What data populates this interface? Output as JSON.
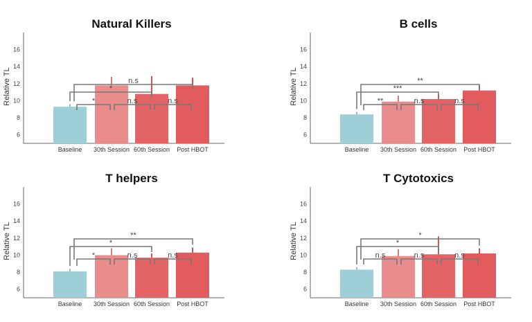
{
  "colors": {
    "baseline": "#9fcfd6",
    "session30": "#e88c8c",
    "session60": "#e46466",
    "post": "#e25c5e",
    "bracket": "#777777",
    "axis": "#666666"
  },
  "chart_data": [
    {
      "type": "bar",
      "title": "Natural Killers",
      "ylabel": "Relative TL",
      "xlabel": "",
      "ylim": [
        5,
        18
      ],
      "yticks": [
        6,
        8,
        10,
        12,
        14,
        16
      ],
      "categories": [
        "Baseline",
        "30th Session",
        "60th Session",
        "Post HBOT"
      ],
      "values": [
        9.3,
        11.8,
        10.8,
        11.8
      ],
      "errors": [
        0.3,
        1.0,
        2.1,
        0.9
      ],
      "significance": [
        {
          "from": 0,
          "to": 1,
          "label": "*"
        },
        {
          "from": 1,
          "to": 2,
          "label": "n.s"
        },
        {
          "from": 2,
          "to": 3,
          "label": "n.s"
        },
        {
          "from": 0,
          "to": 2,
          "label": "*"
        },
        {
          "from": 0,
          "to": 3,
          "label": "n.s"
        }
      ]
    },
    {
      "type": "bar",
      "title": "B cells",
      "ylabel": "Relative TL",
      "xlabel": "",
      "ylim": [
        5,
        18
      ],
      "yticks": [
        6,
        8,
        10,
        12,
        14,
        16
      ],
      "categories": [
        "Baseline",
        "30th Session",
        "60th Session",
        "Post HBOT"
      ],
      "values": [
        8.4,
        9.9,
        10.2,
        11.2
      ],
      "errors": [
        0.3,
        0.7,
        0.6,
        0.6
      ],
      "significance": [
        {
          "from": 0,
          "to": 1,
          "label": "**"
        },
        {
          "from": 1,
          "to": 2,
          "label": "n.s"
        },
        {
          "from": 2,
          "to": 3,
          "label": "n.s"
        },
        {
          "from": 0,
          "to": 2,
          "label": "***"
        },
        {
          "from": 0,
          "to": 3,
          "label": "**"
        }
      ]
    },
    {
      "type": "bar",
      "title": "T helpers",
      "ylabel": "Relative TL",
      "xlabel": "",
      "ylim": [
        5,
        18
      ],
      "yticks": [
        6,
        8,
        10,
        12,
        14,
        16
      ],
      "categories": [
        "Baseline",
        "30th Session",
        "60th Session",
        "Post HBOT"
      ],
      "values": [
        8.1,
        10.0,
        9.7,
        10.3
      ],
      "errors": [
        0.3,
        0.8,
        0.5,
        0.6
      ],
      "significance": [
        {
          "from": 0,
          "to": 1,
          "label": "*"
        },
        {
          "from": 1,
          "to": 2,
          "label": "n.s"
        },
        {
          "from": 2,
          "to": 3,
          "label": "n.s"
        },
        {
          "from": 0,
          "to": 2,
          "label": "*"
        },
        {
          "from": 0,
          "to": 3,
          "label": "**"
        }
      ]
    },
    {
      "type": "bar",
      "title": "T Cytotoxics",
      "ylabel": "Relative TL",
      "xlabel": "",
      "ylim": [
        5,
        18
      ],
      "yticks": [
        6,
        8,
        10,
        12,
        14,
        16
      ],
      "categories": [
        "Baseline",
        "30th Session",
        "60th Session",
        "Post HBOT"
      ],
      "values": [
        8.3,
        9.9,
        10.1,
        10.2
      ],
      "errors": [
        0.3,
        0.8,
        2.1,
        0.6
      ],
      "significance": [
        {
          "from": 0,
          "to": 1,
          "label": "n.s"
        },
        {
          "from": 1,
          "to": 2,
          "label": "n.s"
        },
        {
          "from": 2,
          "to": 3,
          "label": "n.s"
        },
        {
          "from": 0,
          "to": 2,
          "label": "*"
        },
        {
          "from": 0,
          "to": 3,
          "label": "*"
        }
      ]
    }
  ]
}
